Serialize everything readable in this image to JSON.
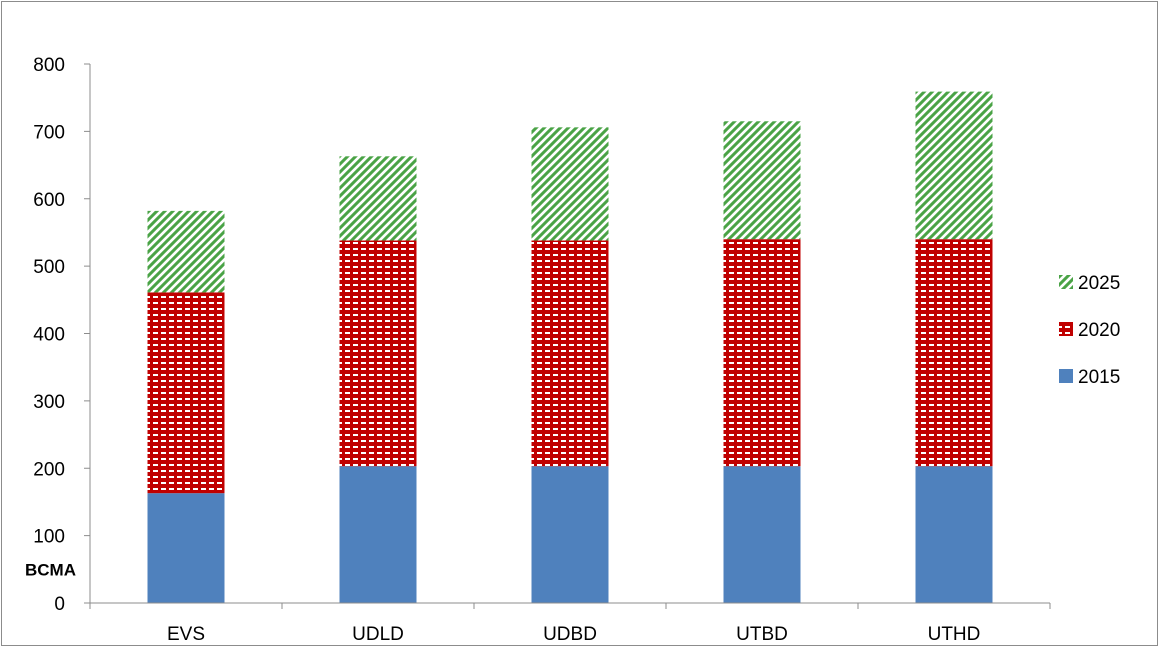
{
  "chart_data": {
    "type": "bar",
    "stacked": true,
    "categories": [
      "EVS",
      "UDLD",
      "UDBD",
      "UTBD",
      "UTHD"
    ],
    "series": [
      {
        "name": "2015",
        "values": [
          163,
          203,
          203,
          203,
          203
        ],
        "color": "#4f81bd",
        "pattern": "solid"
      },
      {
        "name": "2020",
        "values": [
          298,
          335,
          335,
          337,
          337
        ],
        "color": "#c00000",
        "pattern": "dotted-grid"
      },
      {
        "name": "2025",
        "values": [
          121,
          125,
          168,
          175,
          219
        ],
        "color": "#4aa346",
        "pattern": "diagonal-stripes"
      }
    ],
    "ylabel": "BCMA",
    "ylim": [
      0,
      800
    ],
    "yticks": [
      0,
      100,
      200,
      300,
      400,
      500,
      600,
      700,
      800
    ],
    "grid": false,
    "legend_position": "right",
    "legend_order": [
      "2025",
      "2020",
      "2015"
    ]
  }
}
